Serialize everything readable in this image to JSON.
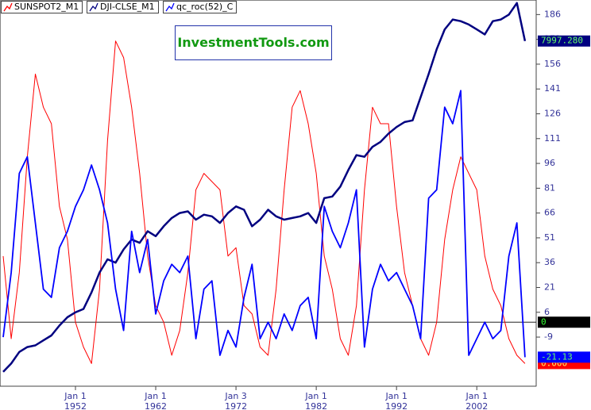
{
  "chart_data": {
    "type": "line",
    "title": "InvestmentTools.com",
    "x": [
      1943,
      1944,
      1945,
      1946,
      1947,
      1948,
      1949,
      1950,
      1951,
      1952,
      1953,
      1954,
      1955,
      1956,
      1957,
      1958,
      1959,
      1960,
      1961,
      1962,
      1963,
      1964,
      1965,
      1966,
      1967,
      1968,
      1969,
      1970,
      1971,
      1972,
      1973,
      1974,
      1975,
      1976,
      1977,
      1978,
      1979,
      1980,
      1981,
      1982,
      1983,
      1984,
      1985,
      1986,
      1987,
      1988,
      1989,
      1990,
      1991,
      1992,
      1993,
      1994,
      1995,
      1996,
      1997,
      1998,
      1999,
      2000,
      2001,
      2002,
      2003,
      2004,
      2005,
      2006,
      2007,
      2008
    ],
    "series": [
      {
        "name": "SUNSPOT2_M1",
        "color": "#ff0000",
        "width": 1,
        "end_tag": "0.000",
        "values": [
          40,
          -10,
          30,
          100,
          150,
          130,
          120,
          70,
          50,
          0,
          -15,
          -25,
          20,
          110,
          170,
          160,
          130,
          90,
          40,
          10,
          0,
          -20,
          -5,
          30,
          80,
          90,
          85,
          80,
          40,
          45,
          10,
          5,
          -15,
          -20,
          20,
          80,
          130,
          140,
          120,
          90,
          40,
          20,
          -10,
          -20,
          10,
          80,
          130,
          120,
          120,
          70,
          30,
          10,
          -10,
          -20,
          0,
          50,
          80,
          100,
          90,
          80,
          40,
          20,
          10,
          -10,
          -20,
          -25
        ]
      },
      {
        "name": "DJI-CLSE_M1",
        "color": "#000080",
        "width": 2.5,
        "end_tag": "7997.280",
        "values": [
          -30,
          -25,
          -18,
          -15,
          -14,
          -11,
          -8,
          -2,
          3,
          6,
          8,
          18,
          30,
          38,
          36,
          44,
          50,
          48,
          55,
          52,
          58,
          63,
          66,
          67,
          62,
          65,
          64,
          60,
          66,
          70,
          68,
          58,
          62,
          68,
          64,
          62,
          63,
          64,
          66,
          60,
          75,
          76,
          82,
          92,
          101,
          100,
          106,
          109,
          114,
          118,
          121,
          122,
          136,
          150,
          165,
          177,
          183,
          182,
          180,
          177,
          174,
          182,
          183,
          186,
          193,
          170
        ]
      },
      {
        "name": "qc_roc(52)_C",
        "color": "#0000ff",
        "width": 1.8,
        "end_tag": "-21.13",
        "values": [
          -9,
          30,
          90,
          100,
          60,
          20,
          15,
          45,
          55,
          70,
          80,
          95,
          80,
          60,
          20,
          -5,
          55,
          30,
          50,
          5,
          25,
          35,
          30,
          40,
          -10,
          20,
          25,
          -20,
          -5,
          -15,
          15,
          35,
          -10,
          0,
          -10,
          5,
          -5,
          10,
          15,
          -10,
          70,
          55,
          45,
          60,
          80,
          -15,
          20,
          35,
          25,
          30,
          20,
          10,
          -10,
          75,
          80,
          130,
          120,
          140,
          -20,
          -10,
          0,
          -10,
          -5,
          40,
          60,
          -21.13
        ]
      }
    ],
    "hline": {
      "value": 0,
      "label": "0"
    },
    "xlim": [
      1942.6,
      2009.4
    ],
    "xticks": [
      {
        "value": 1952,
        "label": "Jan 1\n1952"
      },
      {
        "value": 1962,
        "label": "Jan 1\n1962"
      },
      {
        "value": 1972,
        "label": "Jan 3\n1972"
      },
      {
        "value": 1982,
        "label": "Jan 1\n1982"
      },
      {
        "value": 1992,
        "label": "Jan 1\n1992"
      },
      {
        "value": 2002,
        "label": "Jan 1\n2002"
      }
    ],
    "ylim": [
      -38.7,
      194.8
    ],
    "yticks": [
      -9,
      6,
      21,
      36,
      51,
      66,
      81,
      96,
      111,
      126,
      141,
      156,
      171,
      186
    ]
  }
}
